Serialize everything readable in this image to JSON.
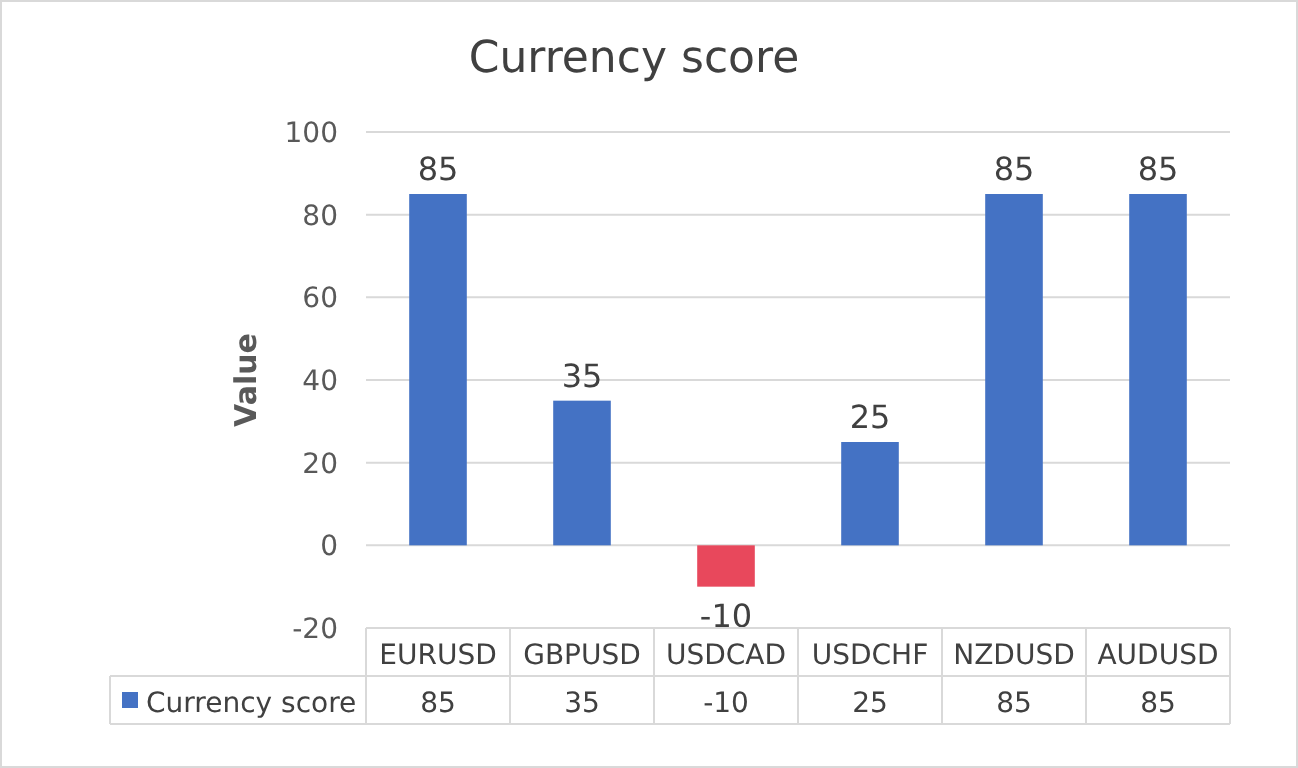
{
  "chart_data": {
    "type": "bar",
    "title": "Currency score",
    "ylabel": "Value",
    "categories": [
      "EURUSD",
      "GBPUSD",
      "USDCAD",
      "USDCHF",
      "NZDUSD",
      "AUDUSD"
    ],
    "series": [
      {
        "name": "Currency score",
        "color": "#4472c4",
        "colors": [
          "#4472c4",
          "#4472c4",
          "#e8485c",
          "#4472c4",
          "#4472c4",
          "#4472c4"
        ],
        "values": [
          85,
          35,
          -10,
          25,
          85,
          85
        ],
        "value_labels": [
          "85",
          "35",
          "-10",
          "25",
          "85",
          "85"
        ]
      }
    ],
    "ylim": [
      -20,
      100
    ],
    "yticks": [
      -20,
      0,
      20,
      40,
      60,
      80,
      100
    ],
    "grid": "y",
    "legend": "bottom",
    "annotations": [
      "85",
      "35",
      "-10",
      "25",
      "85",
      "85"
    ]
  }
}
